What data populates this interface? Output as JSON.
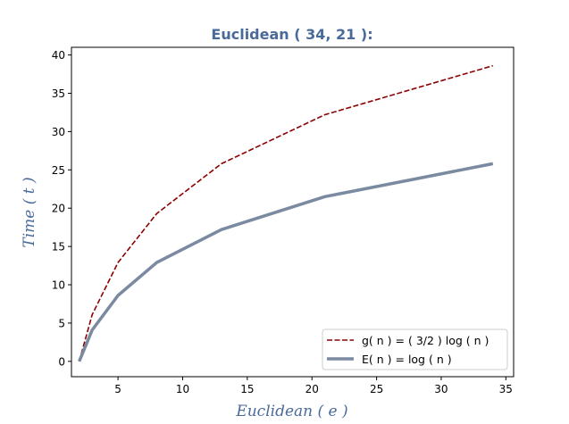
{
  "chart_data": {
    "type": "line",
    "title": "Euclidean ( 34, 21 ):",
    "xlabel": "Euclidean ( e )",
    "ylabel": "Time ( t )",
    "xlim": [
      1.4,
      35.6
    ],
    "ylim": [
      -2,
      41
    ],
    "xticks": [
      5,
      10,
      15,
      20,
      25,
      30,
      35
    ],
    "yticks": [
      0,
      5,
      10,
      15,
      20,
      25,
      30,
      35,
      40
    ],
    "grid": false,
    "legend_position": "bottom-right",
    "colors": {
      "title": "#4a6a9a",
      "axis_label": "#4a6a9a",
      "g": "#8b0000",
      "E": "#7a8aa0"
    },
    "series": [
      {
        "name": "g( n ) = ( 3/2 ) log ( n )",
        "style": "dashed",
        "x": [
          2,
          3,
          5,
          8,
          13,
          21,
          34
        ],
        "y": [
          0,
          6.1,
          12.9,
          19.3,
          25.8,
          32.2,
          38.6
        ]
      },
      {
        "name": "E( n ) = log ( n )",
        "style": "solid",
        "x": [
          2,
          3,
          5,
          8,
          13,
          21,
          34
        ],
        "y": [
          0,
          4.1,
          8.6,
          12.9,
          17.2,
          21.5,
          25.8
        ]
      }
    ]
  }
}
